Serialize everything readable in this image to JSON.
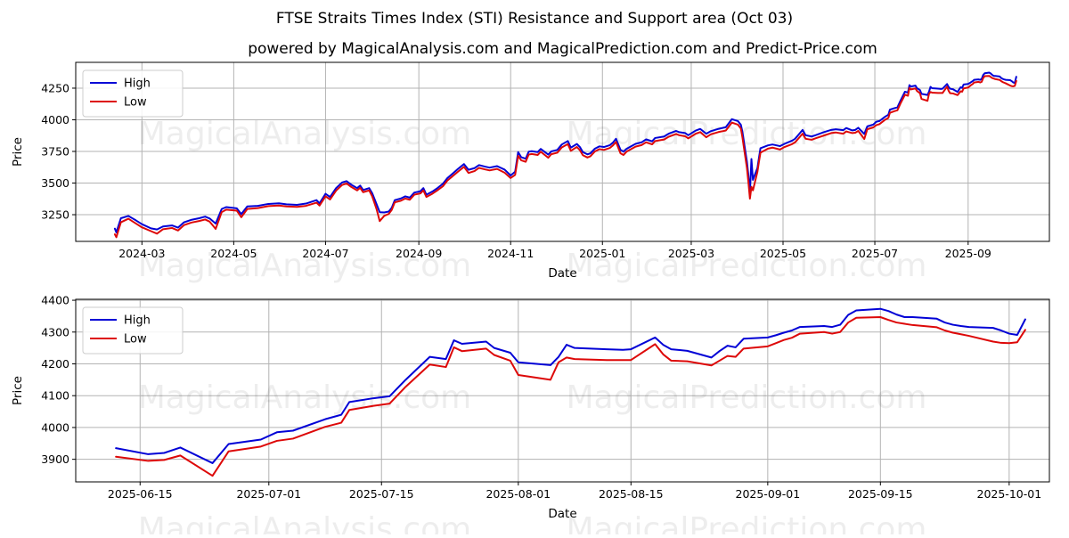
{
  "figure": {
    "title": "FTSE Straits Times Index (STI) Resistance and Support area (Oct 03)",
    "subtitle": "powered by MagicalAnalysis.com and MagicalPrediction.com and Predict-Price.com"
  },
  "colors": {
    "high": "#0202d6",
    "low": "#dd0808",
    "grid": "#b3b3b3",
    "spine": "#000000",
    "tick": "#000000",
    "legend_border": "#cccccc",
    "watermark": "#000000"
  },
  "watermark": {
    "left_text": "MagicalAnalysis.com",
    "right_text": "MagicalPrediction.com"
  },
  "legend": {
    "items": [
      {
        "label": "High",
        "color_key": "high"
      },
      {
        "label": "Low",
        "color_key": "low"
      }
    ]
  },
  "chart_data": [
    {
      "type": "line",
      "xlabel": "Date",
      "ylabel": "Price",
      "legend_position": "upper-left",
      "grid": true,
      "x_range": [
        "2024-01-17",
        "2025-10-25"
      ],
      "y_range": [
        3039,
        4454
      ],
      "y_ticks": [
        3250,
        3500,
        3750,
        4000,
        4250
      ],
      "x_ticks": [
        {
          "label": "2024-03",
          "at": "2024-03-01"
        },
        {
          "label": "2024-05",
          "at": "2024-05-01"
        },
        {
          "label": "2024-07",
          "at": "2024-07-01"
        },
        {
          "label": "2024-09",
          "at": "2024-09-01"
        },
        {
          "label": "2024-11",
          "at": "2024-11-01"
        },
        {
          "label": "2025-01",
          "at": "2025-01-01"
        },
        {
          "label": "2025-03",
          "at": "2025-03-01"
        },
        {
          "label": "2025-05",
          "at": "2025-05-01"
        },
        {
          "label": "2025-07",
          "at": "2025-07-01"
        },
        {
          "label": "2025-09",
          "at": "2025-09-01"
        }
      ],
      "window": [
        "2024-02-12",
        "2025-10-03"
      ],
      "series_names": [
        "High",
        "Low"
      ]
    },
    {
      "type": "line",
      "xlabel": "Date",
      "ylabel": "Price",
      "legend_position": "upper-left",
      "grid": true,
      "x_range": [
        "2025-06-07",
        "2025-10-06"
      ],
      "y_range": [
        3829,
        4403
      ],
      "y_ticks": [
        3900,
        4000,
        4100,
        4200,
        4300,
        4400
      ],
      "x_ticks": [
        {
          "label": "2025-06-15",
          "at": "2025-06-15"
        },
        {
          "label": "2025-07-01",
          "at": "2025-07-01"
        },
        {
          "label": "2025-07-15",
          "at": "2025-07-15"
        },
        {
          "label": "2025-08-01",
          "at": "2025-08-01"
        },
        {
          "label": "2025-08-15",
          "at": "2025-08-15"
        },
        {
          "label": "2025-09-01",
          "at": "2025-09-01"
        },
        {
          "label": "2025-09-15",
          "at": "2025-09-15"
        },
        {
          "label": "2025-10-01",
          "at": "2025-10-01"
        }
      ],
      "window": [
        "2025-06-12",
        "2025-10-03"
      ],
      "series_names": [
        "High",
        "Low"
      ]
    }
  ],
  "series": {
    "columns": [
      "date",
      "high",
      "low"
    ],
    "rows": [
      [
        "2024-02-12",
        3140,
        3095
      ],
      [
        "2024-02-13",
        3110,
        3072
      ],
      [
        "2024-02-16",
        3222,
        3190
      ],
      [
        "2024-02-21",
        3240,
        3218
      ],
      [
        "2024-02-26",
        3205,
        3180
      ],
      [
        "2024-03-01",
        3175,
        3150
      ],
      [
        "2024-03-07",
        3142,
        3120
      ],
      [
        "2024-03-11",
        3133,
        3100
      ],
      [
        "2024-03-15",
        3157,
        3135
      ],
      [
        "2024-03-21",
        3165,
        3145
      ],
      [
        "2024-03-25",
        3148,
        3125
      ],
      [
        "2024-03-29",
        3190,
        3168
      ],
      [
        "2024-04-03",
        3210,
        3188
      ],
      [
        "2024-04-08",
        3222,
        3200
      ],
      [
        "2024-04-12",
        3235,
        3212
      ],
      [
        "2024-04-15",
        3220,
        3195
      ],
      [
        "2024-04-19",
        3180,
        3138
      ],
      [
        "2024-04-23",
        3295,
        3270
      ],
      [
        "2024-04-26",
        3310,
        3290
      ],
      [
        "2024-05-03",
        3300,
        3282
      ],
      [
        "2024-05-06",
        3255,
        3230
      ],
      [
        "2024-05-10",
        3315,
        3295
      ],
      [
        "2024-05-17",
        3320,
        3302
      ],
      [
        "2024-05-24",
        3335,
        3318
      ],
      [
        "2024-05-31",
        3340,
        3322
      ],
      [
        "2024-06-05",
        3332,
        3315
      ],
      [
        "2024-06-12",
        3328,
        3312
      ],
      [
        "2024-06-18",
        3338,
        3320
      ],
      [
        "2024-06-25",
        3365,
        3345
      ],
      [
        "2024-06-27",
        3340,
        3322
      ],
      [
        "2024-07-01",
        3415,
        3395
      ],
      [
        "2024-07-04",
        3390,
        3370
      ],
      [
        "2024-07-08",
        3460,
        3440
      ],
      [
        "2024-07-12",
        3505,
        3485
      ],
      [
        "2024-07-15",
        3515,
        3497
      ],
      [
        "2024-07-18",
        3488,
        3470
      ],
      [
        "2024-07-22",
        3460,
        3442
      ],
      [
        "2024-07-24",
        3480,
        3462
      ],
      [
        "2024-07-26",
        3445,
        3428
      ],
      [
        "2024-07-30",
        3460,
        3442
      ],
      [
        "2024-08-01",
        3420,
        3395
      ],
      [
        "2024-08-04",
        3330,
        3290
      ],
      [
        "2024-08-06",
        3270,
        3199
      ],
      [
        "2024-08-09",
        3268,
        3241
      ],
      [
        "2024-08-12",
        3275,
        3256
      ],
      [
        "2024-08-14",
        3305,
        3288
      ],
      [
        "2024-08-16",
        3365,
        3348
      ],
      [
        "2024-08-20",
        3378,
        3360
      ],
      [
        "2024-08-23",
        3395,
        3378
      ],
      [
        "2024-08-26",
        3385,
        3368
      ],
      [
        "2024-08-29",
        3425,
        3408
      ],
      [
        "2024-09-02",
        3435,
        3418
      ],
      [
        "2024-09-04",
        3460,
        3442
      ],
      [
        "2024-09-06",
        3408,
        3390
      ],
      [
        "2024-09-10",
        3433,
        3416
      ],
      [
        "2024-09-13",
        3457,
        3440
      ],
      [
        "2024-09-17",
        3495,
        3475
      ],
      [
        "2024-09-20",
        3540,
        3520
      ],
      [
        "2024-09-24",
        3580,
        3560
      ],
      [
        "2024-09-27",
        3612,
        3590
      ],
      [
        "2024-10-01",
        3650,
        3628
      ],
      [
        "2024-10-04",
        3605,
        3580
      ],
      [
        "2024-10-08",
        3618,
        3595
      ],
      [
        "2024-10-11",
        3642,
        3620
      ],
      [
        "2024-10-15",
        3630,
        3608
      ],
      [
        "2024-10-18",
        3622,
        3600
      ],
      [
        "2024-10-23",
        3634,
        3612
      ],
      [
        "2024-10-28",
        3606,
        3582
      ],
      [
        "2024-11-01",
        3560,
        3540
      ],
      [
        "2024-11-04",
        3590,
        3565
      ],
      [
        "2024-11-06",
        3745,
        3715
      ],
      [
        "2024-11-08",
        3705,
        3680
      ],
      [
        "2024-11-11",
        3692,
        3668
      ],
      [
        "2024-11-13",
        3748,
        3725
      ],
      [
        "2024-11-15",
        3752,
        3730
      ],
      [
        "2024-11-19",
        3745,
        3722
      ],
      [
        "2024-11-21",
        3770,
        3748
      ],
      [
        "2024-11-26",
        3725,
        3700
      ],
      [
        "2024-11-28",
        3750,
        3728
      ],
      [
        "2024-12-02",
        3762,
        3740
      ],
      [
        "2024-12-05",
        3805,
        3782
      ],
      [
        "2024-12-09",
        3832,
        3808
      ],
      [
        "2024-12-11",
        3780,
        3755
      ],
      [
        "2024-12-15",
        3809,
        3785
      ],
      [
        "2024-12-17",
        3785,
        3760
      ],
      [
        "2024-12-19",
        3745,
        3720
      ],
      [
        "2024-12-22",
        3727,
        3702
      ],
      [
        "2024-12-24",
        3735,
        3712
      ],
      [
        "2024-12-27",
        3772,
        3750
      ],
      [
        "2024-12-30",
        3790,
        3768
      ],
      [
        "2025-01-02",
        3785,
        3762
      ],
      [
        "2025-01-06",
        3800,
        3778
      ],
      [
        "2025-01-08",
        3820,
        3798
      ],
      [
        "2025-01-10",
        3850,
        3825
      ],
      [
        "2025-01-13",
        3762,
        3735
      ],
      [
        "2025-01-15",
        3748,
        3722
      ],
      [
        "2025-01-17",
        3770,
        3748
      ],
      [
        "2025-01-21",
        3797,
        3775
      ],
      [
        "2025-01-23",
        3810,
        3788
      ],
      [
        "2025-01-27",
        3822,
        3800
      ],
      [
        "2025-01-30",
        3845,
        3822
      ],
      [
        "2025-02-03",
        3830,
        3806
      ],
      [
        "2025-02-05",
        3856,
        3832
      ],
      [
        "2025-02-11",
        3868,
        3844
      ],
      [
        "2025-02-14",
        3890,
        3866
      ],
      [
        "2025-02-19",
        3912,
        3888
      ],
      [
        "2025-02-21",
        3902,
        3878
      ],
      [
        "2025-02-25",
        3895,
        3870
      ],
      [
        "2025-02-27",
        3878,
        3853
      ],
      [
        "2025-03-04",
        3915,
        3890
      ],
      [
        "2025-03-07",
        3928,
        3903
      ],
      [
        "2025-03-11",
        3890,
        3862
      ],
      [
        "2025-03-14",
        3910,
        3885
      ],
      [
        "2025-03-19",
        3928,
        3903
      ],
      [
        "2025-03-24",
        3942,
        3915
      ],
      [
        "2025-03-28",
        4005,
        3978
      ],
      [
        "2025-04-01",
        3990,
        3962
      ],
      [
        "2025-04-03",
        3960,
        3930
      ],
      [
        "2025-04-04",
        3905,
        3862
      ],
      [
        "2025-04-07",
        3670,
        3620
      ],
      [
        "2025-04-08",
        3560,
        3505
      ],
      [
        "2025-04-09",
        3420,
        3377
      ],
      [
        "2025-04-10",
        3690,
        3470
      ],
      [
        "2025-04-11",
        3525,
        3442
      ],
      [
        "2025-04-14",
        3620,
        3590
      ],
      [
        "2025-04-15",
        3700,
        3668
      ],
      [
        "2025-04-16",
        3775,
        3740
      ],
      [
        "2025-04-21",
        3798,
        3772
      ],
      [
        "2025-04-24",
        3805,
        3780
      ],
      [
        "2025-04-29",
        3792,
        3765
      ],
      [
        "2025-05-02",
        3810,
        3785
      ],
      [
        "2025-05-07",
        3835,
        3808
      ],
      [
        "2025-05-09",
        3850,
        3822
      ],
      [
        "2025-05-14",
        3920,
        3890
      ],
      [
        "2025-05-16",
        3878,
        3850
      ],
      [
        "2025-05-20",
        3868,
        3842
      ],
      [
        "2025-05-23",
        3880,
        3855
      ],
      [
        "2025-05-28",
        3902,
        3875
      ],
      [
        "2025-06-02",
        3920,
        3895
      ],
      [
        "2025-06-05",
        3925,
        3900
      ],
      [
        "2025-06-10",
        3918,
        3890
      ],
      [
        "2025-06-12",
        3935,
        3908
      ],
      [
        "2025-06-16",
        3916,
        3895
      ],
      [
        "2025-06-18",
        3920,
        3898
      ],
      [
        "2025-06-20",
        3937,
        3912
      ],
      [
        "2025-06-24",
        3888,
        3848
      ],
      [
        "2025-06-26",
        3948,
        3925
      ],
      [
        "2025-06-30",
        3962,
        3940
      ],
      [
        "2025-07-02",
        3985,
        3958
      ],
      [
        "2025-07-04",
        3990,
        3965
      ],
      [
        "2025-07-08",
        4026,
        4002
      ],
      [
        "2025-07-10",
        4040,
        4015
      ],
      [
        "2025-07-11",
        4080,
        4055
      ],
      [
        "2025-07-14",
        4092,
        4068
      ],
      [
        "2025-07-16",
        4098,
        4075
      ],
      [
        "2025-07-18",
        4150,
        4128
      ],
      [
        "2025-07-21",
        4222,
        4198
      ],
      [
        "2025-07-23",
        4215,
        4190
      ],
      [
        "2025-07-24",
        4274,
        4252
      ],
      [
        "2025-07-25",
        4263,
        4240
      ],
      [
        "2025-07-28",
        4270,
        4248
      ],
      [
        "2025-07-29",
        4250,
        4228
      ],
      [
        "2025-07-31",
        4235,
        4210
      ],
      [
        "2025-08-01",
        4205,
        4165
      ],
      [
        "2025-08-05",
        4196,
        4150
      ],
      [
        "2025-08-06",
        4222,
        4205
      ],
      [
        "2025-08-07",
        4260,
        4220
      ],
      [
        "2025-08-08",
        4250,
        4215
      ],
      [
        "2025-08-12",
        4246,
        4212
      ],
      [
        "2025-08-14",
        4244,
        4212
      ],
      [
        "2025-08-15",
        4246,
        4212
      ],
      [
        "2025-08-18",
        4283,
        4262
      ],
      [
        "2025-08-19",
        4260,
        4230
      ],
      [
        "2025-08-20",
        4246,
        4210
      ],
      [
        "2025-08-22",
        4241,
        4208
      ],
      [
        "2025-08-25",
        4220,
        4195
      ],
      [
        "2025-08-26",
        4240,
        4210
      ],
      [
        "2025-08-27",
        4257,
        4225
      ],
      [
        "2025-08-28",
        4252,
        4222
      ],
      [
        "2025-08-29",
        4279,
        4248
      ],
      [
        "2025-09-01",
        4283,
        4255
      ],
      [
        "2025-09-02",
        4290,
        4265
      ],
      [
        "2025-09-03",
        4298,
        4275
      ],
      [
        "2025-09-04",
        4305,
        4282
      ],
      [
        "2025-09-05",
        4316,
        4295
      ],
      [
        "2025-09-08",
        4319,
        4300
      ],
      [
        "2025-09-09",
        4316,
        4295
      ],
      [
        "2025-09-10",
        4323,
        4300
      ],
      [
        "2025-09-11",
        4354,
        4330
      ],
      [
        "2025-09-12",
        4368,
        4345
      ],
      [
        "2025-09-15",
        4373,
        4347
      ],
      [
        "2025-09-16",
        4366,
        4338
      ],
      [
        "2025-09-17",
        4355,
        4330
      ],
      [
        "2025-09-18",
        4347,
        4326
      ],
      [
        "2025-09-19",
        4347,
        4322
      ],
      [
        "2025-09-22",
        4342,
        4315
      ],
      [
        "2025-09-23",
        4330,
        4305
      ],
      [
        "2025-09-24",
        4323,
        4298
      ],
      [
        "2025-09-25",
        4319,
        4293
      ],
      [
        "2025-09-26",
        4316,
        4288
      ],
      [
        "2025-09-29",
        4313,
        4270
      ],
      [
        "2025-09-30",
        4305,
        4266
      ],
      [
        "2025-10-01",
        4295,
        4265
      ],
      [
        "2025-10-02",
        4291,
        4268
      ],
      [
        "2025-10-03",
        4340,
        4307
      ]
    ]
  }
}
